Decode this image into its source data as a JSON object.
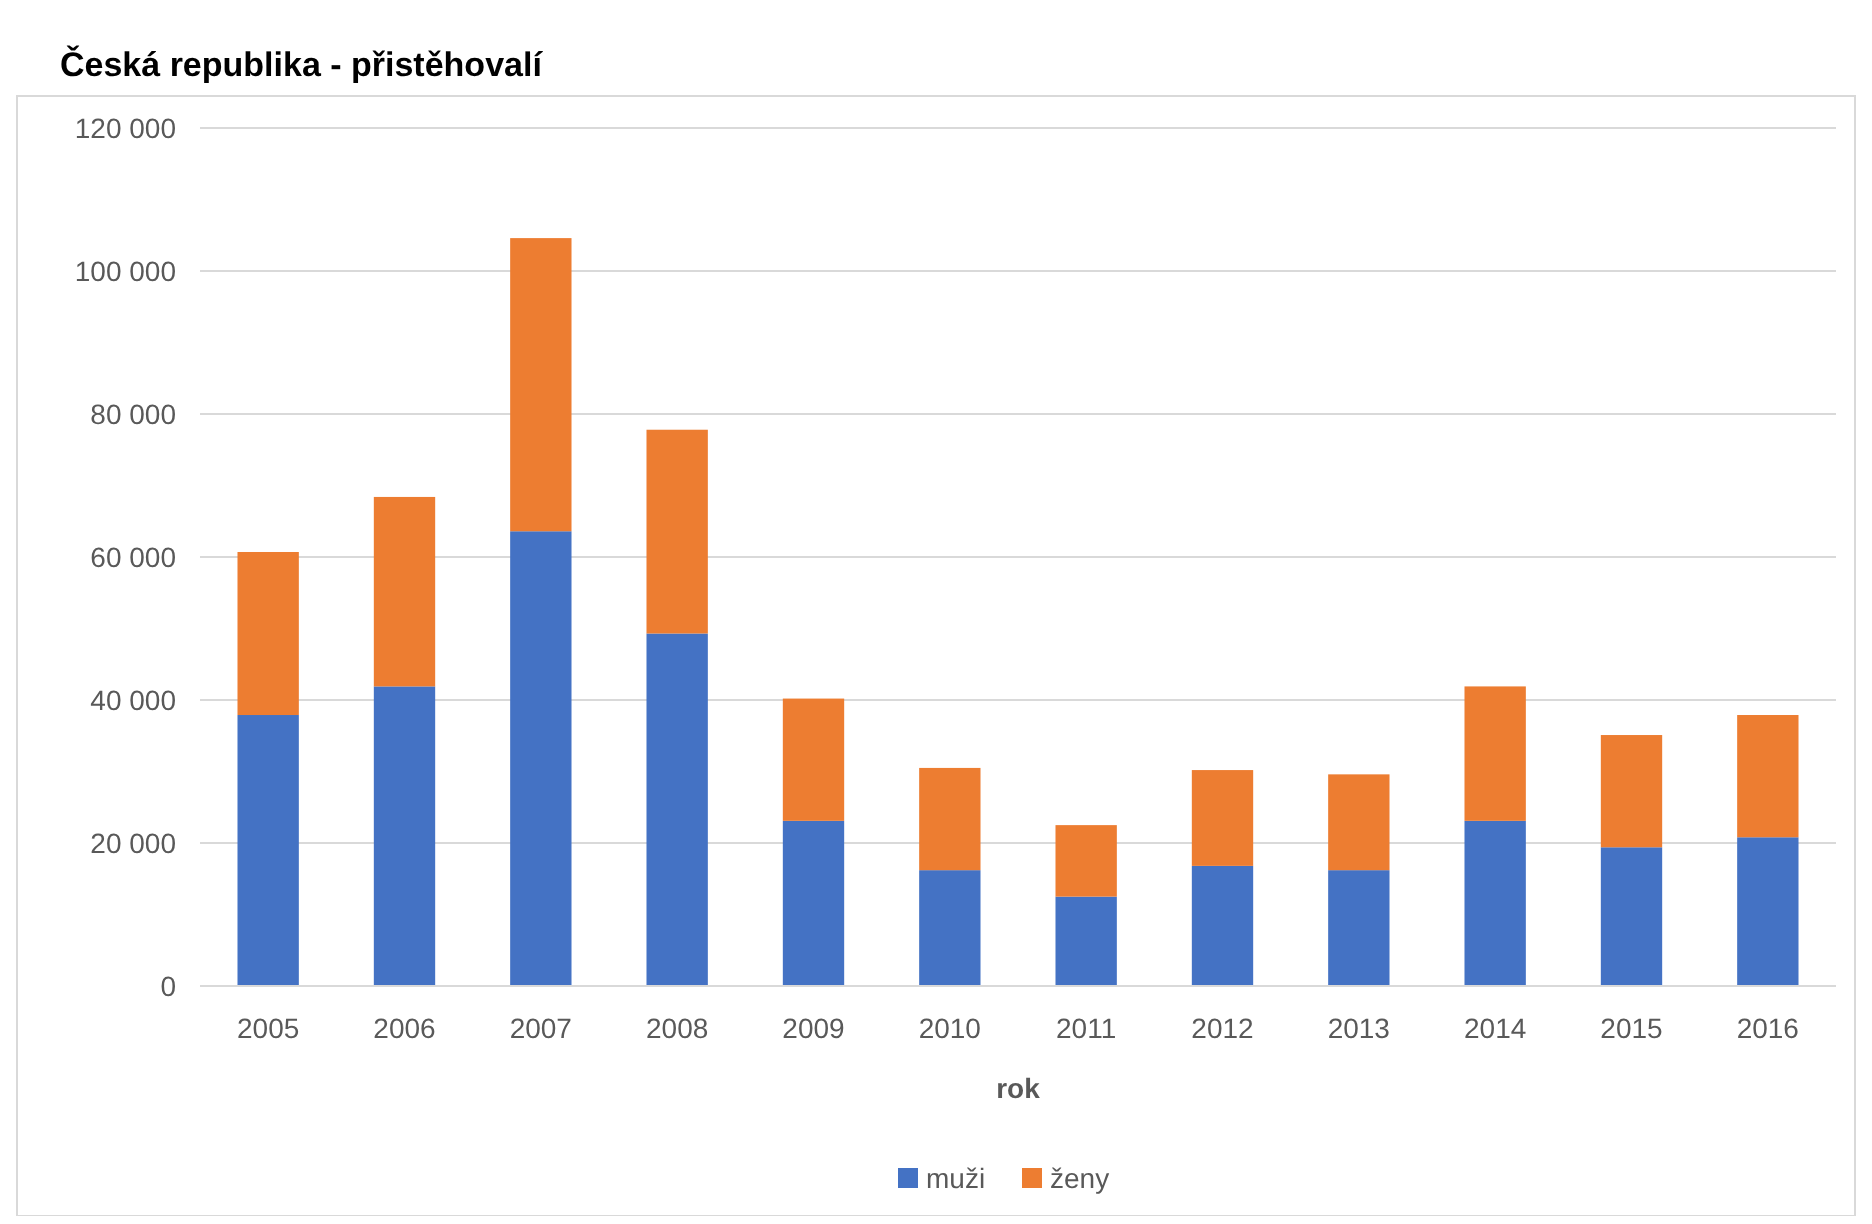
{
  "chart_data": {
    "type": "bar",
    "title": "Česká republika - přistěhovalí",
    "xlabel": "rok",
    "stacked": true,
    "grid": "y",
    "legend": "bottom",
    "categories": [
      "2005",
      "2006",
      "2007",
      "2008",
      "2009",
      "2010",
      "2011",
      "2012",
      "2013",
      "2014",
      "2015",
      "2016"
    ],
    "series": [
      {
        "name": "muži",
        "color": "#4472c4",
        "values": [
          37900,
          41900,
          63600,
          49300,
          23100,
          16200,
          12500,
          16800,
          16200,
          23100,
          19400,
          20800
        ]
      },
      {
        "name": "ženy",
        "color": "#ed7d31",
        "values": [
          22800,
          26500,
          41000,
          28500,
          17100,
          14300,
          10000,
          13400,
          13400,
          18800,
          15700,
          17100
        ]
      }
    ],
    "ylim": [
      0,
      120000
    ],
    "yticks": [
      0,
      {
        "value": 20000,
        "label": "20 000"
      },
      {
        "value": 40000,
        "label": "40 000"
      },
      {
        "value": 60000,
        "label": "60 000"
      },
      {
        "value": 80000,
        "label": "80 000"
      },
      {
        "value": 100000,
        "label": "100 000"
      },
      {
        "value": 120000,
        "label": "120 000"
      }
    ]
  }
}
